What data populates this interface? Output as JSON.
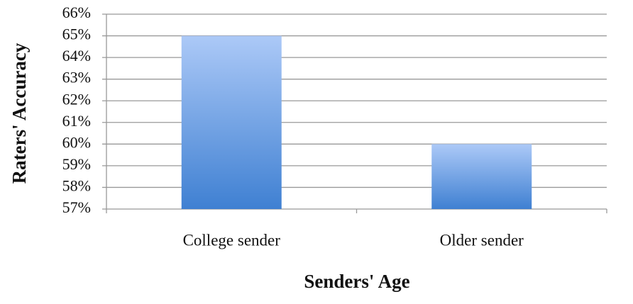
{
  "chart_data": {
    "type": "bar",
    "x_label": "Senders' Age",
    "y_label": "Raters' Accuracy",
    "categories": [
      "College sender",
      "Older sender"
    ],
    "values": [
      65,
      60
    ],
    "color": "#3f80d2",
    "ylim": [
      57,
      66
    ],
    "yticks": [
      {
        "value": 57,
        "label": "57%"
      },
      {
        "value": 58,
        "label": "58%"
      },
      {
        "value": 59,
        "label": "59%"
      },
      {
        "value": 60,
        "label": "60%"
      },
      {
        "value": 61,
        "label": "61%"
      },
      {
        "value": 62,
        "label": "62%"
      },
      {
        "value": 63,
        "label": "63%"
      },
      {
        "value": 64,
        "label": "64%"
      },
      {
        "value": 65,
        "label": "65%"
      },
      {
        "value": 66,
        "label": "66%"
      }
    ],
    "grid": true
  }
}
